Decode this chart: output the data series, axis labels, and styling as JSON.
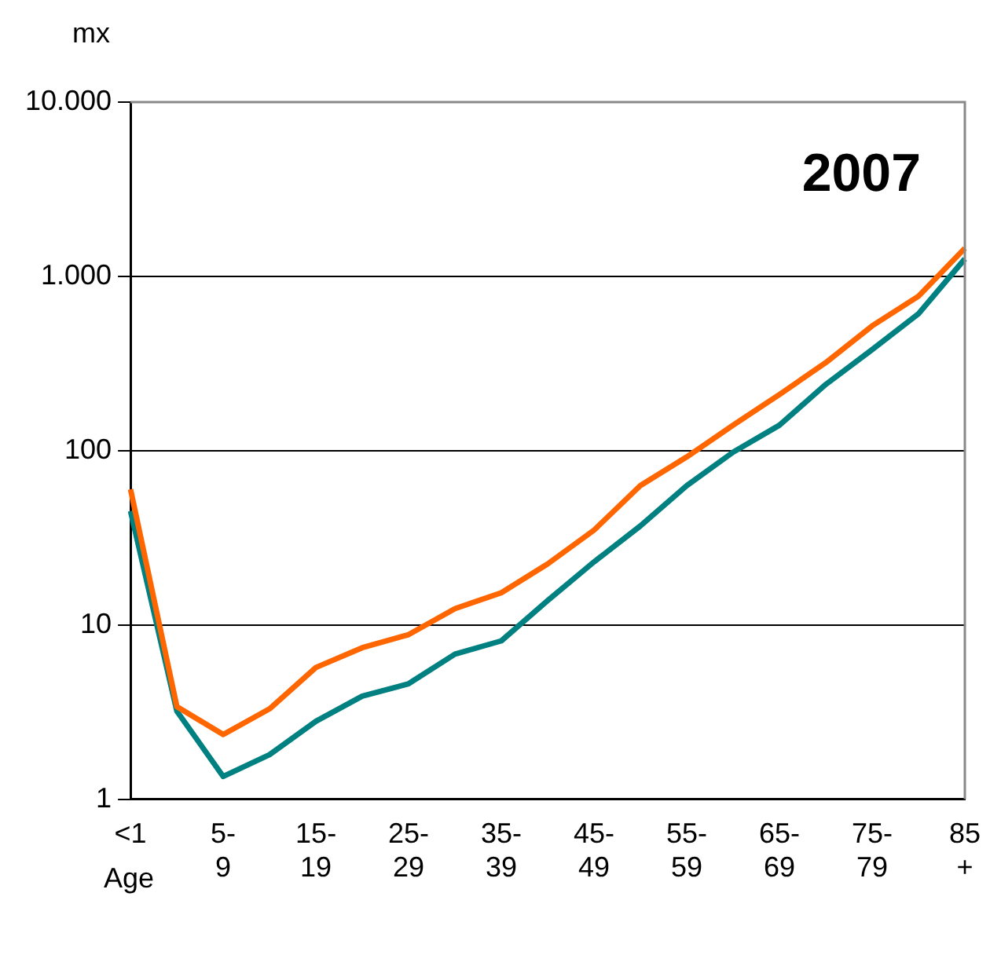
{
  "chart_data": {
    "type": "line",
    "title": "2007",
    "xlabel": "Age",
    "ylabel": "mx",
    "categories": [
      "<1",
      null,
      "5-9",
      null,
      "15-19",
      null,
      "25-29",
      null,
      "35-39",
      null,
      "45-49",
      null,
      "55-59",
      null,
      "65-69",
      null,
      "75-79",
      null,
      "85+"
    ],
    "series": [
      {
        "color": "#ff6600",
        "values": [
          60,
          3.4,
          2.35,
          3.3,
          5.7,
          7.4,
          8.8,
          12.4,
          15.3,
          22.4,
          35,
          63,
          92,
          140,
          210,
          320,
          520,
          770,
          1450
        ]
      },
      {
        "color": "#008080",
        "values": [
          45,
          3.2,
          1.35,
          1.8,
          2.8,
          3.9,
          4.6,
          6.8,
          8.1,
          13.8,
          23,
          37,
          63,
          98,
          140,
          240,
          380,
          610,
          1260
        ]
      }
    ],
    "log": "y",
    "ylim": [
      1,
      10000
    ],
    "yticks": [
      1,
      10,
      100,
      {
        "value": 1000,
        "label": "1.000"
      },
      {
        "value": 10000,
        "label": "10.000"
      }
    ],
    "grid": "y",
    "legend": false,
    "marker": "none",
    "line_style": "solid"
  }
}
